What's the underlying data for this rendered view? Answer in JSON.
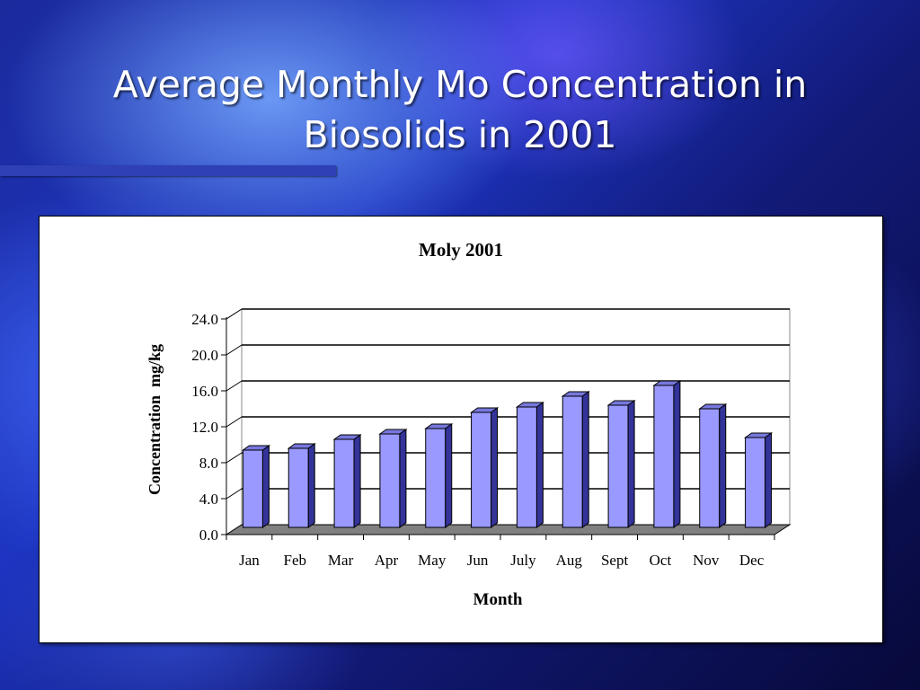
{
  "slide": {
    "title_line1": "Average Monthly Mo Concentration in",
    "title_line2": "Biosolids in 2001"
  },
  "colors": {
    "bar_front": "#9999ff",
    "bar_top": "#7777dd",
    "bar_side": "#333399",
    "floor": "#808080"
  },
  "chart_data": {
    "type": "bar",
    "style": "3d-column",
    "title": "Moly 2001",
    "xlabel": "Month",
    "ylabel": "Concentration  mg/kg",
    "categories": [
      "Jan",
      "Feb",
      "Mar",
      "Apr",
      "May",
      "Jun",
      "July",
      "Aug",
      "Sept",
      "Oct",
      "Nov",
      "Dec"
    ],
    "values": [
      9.4,
      9.6,
      10.6,
      11.2,
      11.8,
      13.6,
      14.2,
      15.4,
      14.4,
      16.6,
      14.0,
      10.8
    ],
    "ylim": [
      0,
      24
    ],
    "yticks": [
      "0.0",
      "4.0",
      "8.0",
      "12.0",
      "16.0",
      "20.0",
      "24.0"
    ],
    "grid": true,
    "legend": "none"
  }
}
